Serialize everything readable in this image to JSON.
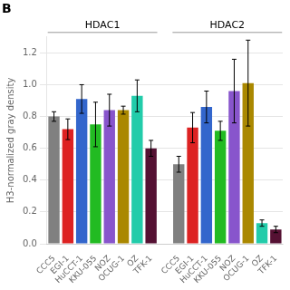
{
  "chart_data": {
    "type": "bar",
    "title": "B",
    "ylabel": "H3-normalized gray density",
    "categories": [
      "CCC5",
      "EGI-1",
      "HuCCT-1",
      "KKU-055",
      "NOZ",
      "OCUG-1",
      "OZ",
      "TFK-1"
    ],
    "colors": [
      "#808080",
      "#dd2222",
      "#3366cc",
      "#22bb22",
      "#8855cc",
      "#aa8800",
      "#22ccaa",
      "#551133"
    ],
    "groups": [
      {
        "title": "HDAC1",
        "values": [
          0.8,
          0.72,
          0.91,
          0.75,
          0.84,
          0.84,
          0.93,
          0.6
        ],
        "errors": [
          0.03,
          0.065,
          0.09,
          0.14,
          0.1,
          0.025,
          0.1,
          0.05
        ]
      },
      {
        "title": "HDAC2",
        "values": [
          0.5,
          0.73,
          0.86,
          0.71,
          0.96,
          1.01,
          0.13,
          0.09
        ],
        "errors": [
          0.05,
          0.095,
          0.1,
          0.06,
          0.2,
          0.27,
          0.02,
          0.02
        ]
      }
    ],
    "ylim": [
      0.0,
      1.3
    ],
    "yticks": [
      {
        "value": 0.0,
        "label": "0.0"
      },
      {
        "value": 0.2,
        "label": "0.2"
      },
      {
        "value": 0.4,
        "label": "0.4"
      },
      {
        "value": 0.6,
        "label": "0.6"
      },
      {
        "value": 0.8,
        "label": "0.8"
      },
      {
        "value": 1.0,
        "label": "1.0"
      },
      {
        "value": 1.2,
        "label": "1.2"
      }
    ],
    "grid": true
  }
}
